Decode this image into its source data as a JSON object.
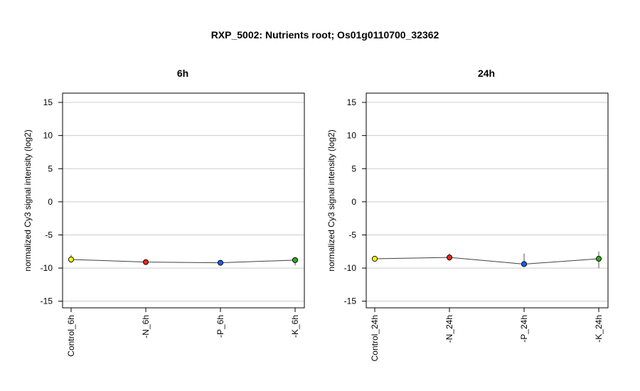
{
  "figure": {
    "title": "RXP_5002: Nutrients root; Os01g0110700_32362"
  },
  "chart_data": [
    {
      "type": "line",
      "title": "6h",
      "ylabel": "normalized Cy3 signal intensity (log2)",
      "xlabel": "",
      "ylim": [
        -16,
        16.4
      ],
      "yticks": [
        -15,
        -10,
        -5,
        0,
        5,
        10,
        15
      ],
      "grid": true,
      "categories": [
        "Control_6h",
        "-N_6h",
        "-P_6h",
        "-K_6h"
      ],
      "values": [
        -8.7,
        -9.1,
        -9.2,
        -8.8
      ],
      "err_low": [
        -9.2,
        -9.4,
        -9.6,
        -9.6
      ],
      "err_high": [
        -8.0,
        -8.8,
        -8.8,
        -8.4
      ],
      "colors": [
        "#ffff00",
        "#e8231a",
        "#1a5ce8",
        "#2ea81a"
      ],
      "line_color": "#404040"
    },
    {
      "type": "line",
      "title": "24h",
      "ylabel": "normalized Cy3 signal intensity (log2)",
      "xlabel": "",
      "ylim": [
        -16,
        16.4
      ],
      "yticks": [
        -15,
        -10,
        -5,
        0,
        5,
        10,
        15
      ],
      "grid": true,
      "categories": [
        "Control_24h",
        "-N_24h",
        "-P_24h",
        "-K_24h"
      ],
      "values": [
        -8.6,
        -8.4,
        -9.4,
        -8.6
      ],
      "err_low": [
        -8.8,
        -8.9,
        -9.6,
        -10.0
      ],
      "err_high": [
        -8.4,
        -7.8,
        -7.8,
        -7.5
      ],
      "colors": [
        "#ffff00",
        "#e8231a",
        "#1a5ce8",
        "#2ea81a"
      ],
      "line_color": "#404040"
    }
  ]
}
